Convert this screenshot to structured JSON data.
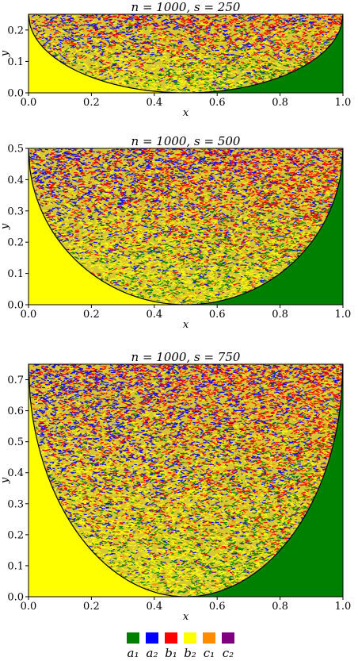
{
  "legend": {
    "items": [
      {
        "label": "a₁",
        "color": "#008000"
      },
      {
        "label": "a₂",
        "color": "#0000ff"
      },
      {
        "label": "b₁",
        "color": "#ff0000"
      },
      {
        "label": "b₂",
        "color": "#ffff00"
      },
      {
        "label": "c₁",
        "color": "#ff8c00"
      },
      {
        "label": "c₂",
        "color": "#800080"
      }
    ]
  },
  "chart_data": [
    {
      "type": "heatmap",
      "title": "n = 1000, s = 250",
      "n": 1000,
      "s": 250,
      "xlabel": "x",
      "ylabel": "y",
      "xlim": [
        0.0,
        1.0
      ],
      "ylim": [
        0.0,
        0.25
      ],
      "xticks": [
        "0.0",
        "0.2",
        "0.4",
        "0.6",
        "0.8",
        "1.0"
      ],
      "yticks": [
        "0.0",
        "0.1",
        "0.2"
      ],
      "regions": {
        "bottom_left": "b₂",
        "bottom_right": "a₁",
        "top_left": "a₂",
        "top_right": "b₁",
        "interior": "mixed"
      },
      "boundary": "half-ellipse from (0, s/n) through (0.5, 0) to (1, s/n)"
    },
    {
      "type": "heatmap",
      "title": "n = 1000, s = 500",
      "n": 1000,
      "s": 500,
      "xlabel": "x",
      "ylabel": "y",
      "xlim": [
        0.0,
        1.0
      ],
      "ylim": [
        0.0,
        0.5
      ],
      "xticks": [
        "0.0",
        "0.2",
        "0.4",
        "0.6",
        "0.8",
        "1.0"
      ],
      "yticks": [
        "0.0",
        "0.1",
        "0.2",
        "0.3",
        "0.4",
        "0.5"
      ],
      "regions": {
        "bottom_left": "b₂",
        "bottom_right": "a₁",
        "top_left": "a₂",
        "top_right": "b₁",
        "interior": "mixed"
      },
      "boundary": "half-ellipse from (0, s/n) through (0.5, 0) to (1, s/n)"
    },
    {
      "type": "heatmap",
      "title": "n = 1000, s = 750",
      "n": 1000,
      "s": 750,
      "xlabel": "x",
      "ylabel": "y",
      "xlim": [
        0.0,
        1.0
      ],
      "ylim": [
        0.0,
        0.75
      ],
      "xticks": [
        "0.0",
        "0.2",
        "0.4",
        "0.6",
        "0.8",
        "1.0"
      ],
      "yticks": [
        "0.0",
        "0.1",
        "0.2",
        "0.3",
        "0.4",
        "0.5",
        "0.6",
        "0.7"
      ],
      "regions": {
        "bottom_left": "b₂",
        "bottom_right": "a₁",
        "top_left": "a₂",
        "top_right": "b₁",
        "interior": "mixed"
      },
      "boundary": "half-ellipse from (0, s/n) through (0.5, 0) to (1, s/n)"
    }
  ]
}
